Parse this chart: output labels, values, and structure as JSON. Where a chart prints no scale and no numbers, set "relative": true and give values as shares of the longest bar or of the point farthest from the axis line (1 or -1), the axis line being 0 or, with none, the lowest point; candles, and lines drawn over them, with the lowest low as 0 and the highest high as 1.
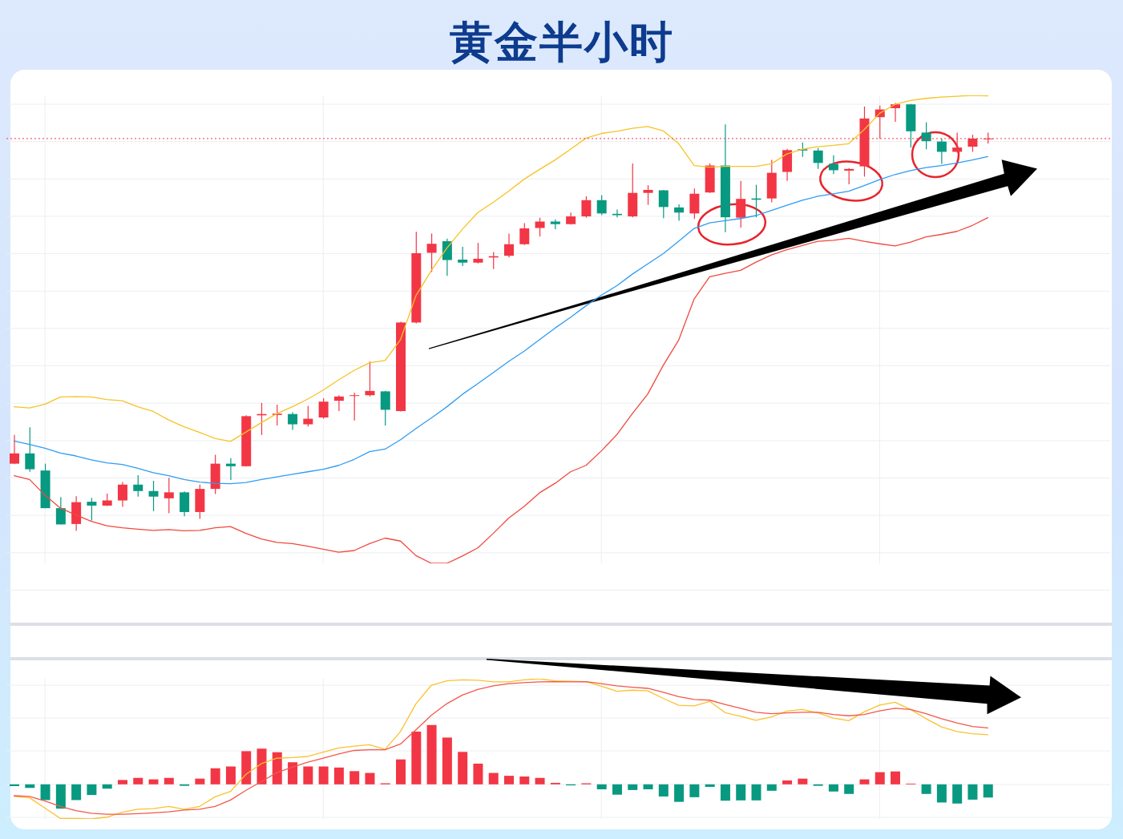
{
  "chart_data": [
    {
      "type": "candlestick",
      "title": "黄金半小时",
      "categories": [
        null,
        null,
        null,
        null,
        null,
        null,
        null,
        null,
        null,
        null,
        null,
        null,
        null,
        null,
        null,
        null,
        null,
        null,
        null,
        null,
        null,
        null,
        null,
        null,
        null,
        null,
        null,
        null,
        null,
        null,
        null,
        null,
        null,
        null,
        null,
        null,
        null,
        null,
        null,
        null,
        null,
        null,
        null,
        null,
        null,
        null,
        null,
        null,
        null,
        null,
        null,
        null,
        null,
        null,
        null,
        null,
        null,
        null,
        null,
        null,
        null,
        null,
        null,
        null
      ],
      "ohlc": [
        [
          0.157,
          0.224,
          0.156,
          0.181
        ],
        [
          0.181,
          0.242,
          0.138,
          0.144
        ],
        [
          0.141,
          0.157,
          0.053,
          0.053
        ],
        [
          0.053,
          0.079,
          0.015,
          0.015
        ],
        [
          0.016,
          0.081,
          0,
          0.067
        ],
        [
          0.068,
          0.077,
          0.024,
          0.059
        ],
        [
          0.059,
          0.087,
          0.058,
          0.071
        ],
        [
          0.071,
          0.114,
          0.056,
          0.108
        ],
        [
          0.108,
          0.13,
          0.08,
          0.093
        ],
        [
          0.093,
          0.117,
          0.046,
          0.08
        ],
        [
          0.076,
          0.124,
          0.041,
          0.09
        ],
        [
          0.09,
          0.092,
          0.034,
          0.044
        ],
        [
          0.044,
          0.108,
          0.028,
          0.098
        ],
        [
          0.098,
          0.178,
          0.086,
          0.157
        ],
        [
          0.157,
          0.17,
          0.119,
          0.151
        ],
        [
          0.151,
          0.27,
          0.15,
          0.268
        ],
        [
          0.27,
          0.299,
          0.224,
          0.273
        ],
        [
          0.271,
          0.295,
          0.246,
          0.274
        ],
        [
          0.273,
          0.277,
          0.236,
          0.249
        ],
        [
          0.249,
          0.292,
          0.244,
          0.262
        ],
        [
          0.265,
          0.31,
          0.262,
          0.302
        ],
        [
          0.304,
          0.317,
          0.28,
          0.314
        ],
        [
          0.316,
          0.323,
          0.258,
          0.317
        ],
        [
          0.317,
          0.396,
          0.314,
          0.327
        ],
        [
          0.326,
          0.327,
          0.246,
          0.283
        ],
        [
          0.28,
          0.489,
          0.279,
          0.487
        ],
        [
          0.487,
          0.699,
          0.485,
          0.649
        ],
        [
          0.65,
          0.695,
          0.605,
          0.671
        ],
        [
          0.677,
          0.683,
          0.596,
          0.633
        ],
        [
          0.634,
          0.664,
          0.619,
          0.627
        ],
        [
          0.627,
          0.673,
          0.625,
          0.636
        ],
        [
          0.639,
          0.652,
          0.612,
          0.642
        ],
        [
          0.643,
          0.695,
          0.639,
          0.67
        ],
        [
          0.67,
          0.719,
          0.668,
          0.707
        ],
        [
          0.708,
          0.732,
          0.688,
          0.723
        ],
        [
          0.723,
          0.728,
          0.705,
          0.717
        ],
        [
          0.717,
          0.744,
          0.716,
          0.735
        ],
        [
          0.735,
          0.782,
          0.732,
          0.773
        ],
        [
          0.773,
          0.785,
          0.738,
          0.742
        ],
        [
          0.741,
          0.751,
          0.733,
          0.738
        ],
        [
          0.735,
          0.859,
          0.733,
          0.79
        ],
        [
          0.79,
          0.808,
          0.762,
          0.797
        ],
        [
          0.796,
          0.797,
          0.731,
          0.757
        ],
        [
          0.756,
          0.763,
          0.725,
          0.744
        ],
        [
          0.742,
          0.8,
          0.729,
          0.788
        ],
        [
          0.791,
          0.859,
          0.79,
          0.854
        ],
        [
          0.854,
          0.95,
          0.698,
          0.733
        ],
        [
          0.732,
          0.818,
          0.709,
          0.776
        ],
        [
          0.777,
          0.809,
          0.733,
          0.774
        ],
        [
          0.777,
          0.867,
          0.768,
          0.837
        ],
        [
          0.839,
          0.893,
          0.818,
          0.89
        ],
        [
          0.892,
          0.908,
          0.874,
          0.889
        ],
        [
          0.889,
          0.895,
          0.846,
          0.86
        ],
        [
          0.858,
          0.878,
          0.834,
          0.843
        ],
        [
          0.842,
          0.848,
          0.81,
          0.846
        ],
        [
          0.852,
          0.992,
          0.828,
          0.964
        ],
        [
          0.967,
          0.994,
          0.917,
          0.985
        ],
        [
          0.988,
          1.0,
          0.956,
          0.997
        ],
        [
          0.997,
          0.998,
          0.896,
          0.934
        ],
        [
          0.931,
          0.955,
          0.892,
          0.911
        ],
        [
          0.91,
          0.917,
          0.858,
          0.886
        ],
        [
          0.886,
          0.931,
          0.884,
          0.896
        ],
        [
          0.898,
          0.926,
          0.886,
          0.917
        ],
        [
          0.916,
          0.931,
          0.905,
          0.917
        ]
      ],
      "colors": [
        "#f23645",
        "#089981",
        "#089981",
        "#089981",
        "#f23645",
        "#089981",
        "#f23645",
        "#f23645",
        "#089981",
        "#089981",
        "#f23645",
        "#089981",
        "#f23645",
        "#f23645",
        "#089981",
        "#f23645",
        "#f23645",
        "#f23645",
        "#089981",
        "#f23645",
        "#f23645",
        "#f23645",
        "#f23645",
        "#f23645",
        "#089981",
        "#f23645",
        "#f23645",
        "#f23645",
        "#089981",
        "#089981",
        "#f23645",
        "#f23645",
        "#f23645",
        "#f23645",
        "#f23645",
        "#089981",
        "#f23645",
        "#f23645",
        "#089981",
        "#089981",
        "#f23645",
        "#f23645",
        "#089981",
        "#089981",
        "#f23645",
        "#f23645",
        "#089981",
        "#f23645",
        "#089981",
        "#f23645",
        "#f23645",
        "#089981",
        "#089981",
        "#089981",
        "#f23645",
        "#f23645",
        "#f23645",
        "#f23645",
        "#089981",
        "#089981",
        "#089981",
        "#f23645",
        "#f23645",
        "#f23645"
      ],
      "relative": true,
      "grid": true,
      "ref_lines": [
        {
          "axis": "y",
          "value": 0.917,
          "color": "#f23645",
          "line_style": "dotted"
        }
      ],
      "series": [
        {
          "type": "line",
          "color": "#f7c325",
          "values": [
            0.29,
            0.287,
            0.296,
            0.313,
            0.314,
            0.313,
            0.307,
            0.304,
            0.29,
            0.279,
            0.259,
            0.243,
            0.23,
            0.216,
            0.209,
            0.231,
            0.253,
            0.274,
            0.29,
            0.308,
            0.329,
            0.353,
            0.375,
            0.393,
            0.398,
            0.447,
            0.55,
            0.609,
            0.661,
            0.705,
            0.744,
            0.768,
            0.794,
            0.822,
            0.845,
            0.867,
            0.892,
            0.918,
            0.929,
            0.934,
            0.941,
            0.945,
            0.935,
            0.905,
            0.854,
            0.85,
            0.852,
            0.852,
            0.852,
            0.858,
            0.881,
            0.892,
            0.898,
            0.901,
            0.905,
            0.938,
            0.976,
            0.997,
            1.006,
            1.011,
            1.014,
            1.016,
            1.018,
            1.017
          ]
        },
        {
          "type": "line",
          "color": "#2f9cf3",
          "values": [
            0.21,
            0.202,
            0.193,
            0.182,
            0.175,
            0.166,
            0.159,
            0.155,
            0.146,
            0.136,
            0.129,
            0.12,
            0.114,
            0.111,
            0.11,
            0.113,
            0.12,
            0.126,
            0.132,
            0.138,
            0.144,
            0.153,
            0.167,
            0.185,
            0.191,
            0.213,
            0.239,
            0.264,
            0.29,
            0.319,
            0.344,
            0.37,
            0.396,
            0.42,
            0.447,
            0.474,
            0.499,
            0.526,
            0.551,
            0.573,
            0.6,
            0.624,
            0.648,
            0.677,
            0.707,
            0.72,
            0.725,
            0.73,
            0.737,
            0.749,
            0.761,
            0.773,
            0.782,
            0.788,
            0.794,
            0.807,
            0.821,
            0.833,
            0.842,
            0.849,
            0.854,
            0.86,
            0.867,
            0.875
          ]
        },
        {
          "type": "line",
          "color": "#f0493e",
          "values": [
            0.129,
            0.12,
            0.083,
            0.053,
            0.037,
            0.022,
            0.012,
            0.007,
            0.004,
            0.001,
            0.003,
            0,
            0.001,
            0.007,
            0.01,
            -0.006,
            -0.019,
            -0.027,
            -0.03,
            -0.036,
            -0.043,
            -0.05,
            -0.046,
            -0.03,
            -0.017,
            -0.024,
            -0.058,
            -0.076,
            -0.076,
            -0.059,
            -0.04,
            -0.006,
            0.03,
            0.057,
            0.089,
            0.111,
            0.138,
            0.153,
            0.187,
            0.225,
            0.274,
            0.32,
            0.387,
            0.446,
            0.542,
            0.594,
            0.602,
            0.609,
            0.628,
            0.645,
            0.657,
            0.667,
            0.677,
            0.679,
            0.684,
            0.677,
            0.671,
            0.666,
            0.675,
            0.687,
            0.693,
            0.7,
            0.714,
            0.732
          ]
        }
      ]
    },
    {
      "type": "bar",
      "categories": [
        null,
        null,
        null,
        null,
        null,
        null,
        null,
        null,
        null,
        null,
        null,
        null,
        null,
        null,
        null,
        null,
        null,
        null,
        null,
        null,
        null,
        null,
        null,
        null,
        null,
        null,
        null,
        null,
        null,
        null,
        null,
        null,
        null,
        null,
        null,
        null,
        null,
        null,
        null,
        null,
        null,
        null,
        null,
        null,
        null,
        null,
        null,
        null,
        null,
        null,
        null,
        null,
        null,
        null,
        null,
        null,
        null,
        null,
        null,
        null,
        null,
        null,
        null,
        null
      ],
      "relative": true,
      "grid": true,
      "series": [
        {
          "values": [
            -0.017,
            -0.034,
            -0.149,
            -0.23,
            -0.149,
            -0.101,
            -0.041,
            0.041,
            0.061,
            0.047,
            0.061,
            -0.014,
            0.054,
            0.152,
            0.169,
            0.314,
            0.338,
            0.304,
            0.209,
            0.169,
            0.169,
            0.159,
            0.125,
            0.108,
            0.01,
            0.236,
            0.5,
            0.561,
            0.443,
            0.307,
            0.196,
            0.108,
            0.081,
            0.074,
            0.061,
            0.014,
            -0.01,
            0.01,
            -0.047,
            -0.098,
            -0.054,
            -0.047,
            -0.115,
            -0.166,
            -0.122,
            -0.024,
            -0.155,
            -0.152,
            -0.152,
            -0.061,
            0.037,
            0.054,
            -0.014,
            -0.068,
            -0.091,
            0.047,
            0.115,
            0.122,
            0.007,
            -0.091,
            -0.172,
            -0.182,
            -0.145,
            -0.125
          ],
          "colors": [
            "#089981",
            "#089981",
            "#089981",
            "#089981",
            "#089981",
            "#089981",
            "#089981",
            "#f23645",
            "#f23645",
            "#f23645",
            "#f23645",
            "#089981",
            "#f23645",
            "#f23645",
            "#f23645",
            "#f23645",
            "#f23645",
            "#f23645",
            "#f23645",
            "#f23645",
            "#f23645",
            "#f23645",
            "#f23645",
            "#f23645",
            "#f23645",
            "#f23645",
            "#f23645",
            "#f23645",
            "#f23645",
            "#f23645",
            "#f23645",
            "#f23645",
            "#f23645",
            "#f23645",
            "#f23645",
            "#f23645",
            "#089981",
            "#f23645",
            "#089981",
            "#089981",
            "#089981",
            "#089981",
            "#089981",
            "#089981",
            "#089981",
            "#089981",
            "#089981",
            "#089981",
            "#089981",
            "#089981",
            "#f23645",
            "#f23645",
            "#089981",
            "#089981",
            "#089981",
            "#f23645",
            "#f23645",
            "#f23645",
            "#f23645",
            "#089981",
            "#089981",
            "#089981",
            "#089981",
            "#089981"
          ]
        },
        {
          "type": "line",
          "color": "#f9c22e",
          "values": [
            -0.115,
            -0.128,
            -0.226,
            -0.324,
            -0.324,
            -0.328,
            -0.311,
            -0.264,
            -0.236,
            -0.23,
            -0.209,
            -0.236,
            -0.209,
            -0.118,
            -0.068,
            0.095,
            0.196,
            0.247,
            0.253,
            0.264,
            0.304,
            0.345,
            0.361,
            0.375,
            0.331,
            0.5,
            0.764,
            0.939,
            0.98,
            0.99,
            0.986,
            0.97,
            0.97,
            0.99,
            1.0,
            0.98,
            0.976,
            0.973,
            0.929,
            0.882,
            0.892,
            0.885,
            0.814,
            0.748,
            0.743,
            0.785,
            0.679,
            0.644,
            0.606,
            0.639,
            0.694,
            0.709,
            0.676,
            0.628,
            0.603,
            0.686,
            0.75,
            0.777,
            0.709,
            0.622,
            0.544,
            0.5,
            0.48,
            0.47
          ]
        },
        {
          "type": "line",
          "color": "#f2594b",
          "values": [
            -0.108,
            -0.115,
            -0.159,
            -0.209,
            -0.25,
            -0.274,
            -0.284,
            -0.284,
            -0.277,
            -0.27,
            -0.26,
            -0.243,
            -0.236,
            -0.209,
            -0.149,
            -0.057,
            0.027,
            0.111,
            0.162,
            0.209,
            0.247,
            0.287,
            0.321,
            0.328,
            0.328,
            0.382,
            0.517,
            0.655,
            0.764,
            0.845,
            0.899,
            0.932,
            0.953,
            0.963,
            0.97,
            0.973,
            0.97,
            0.973,
            0.953,
            0.932,
            0.919,
            0.909,
            0.872,
            0.831,
            0.804,
            0.797,
            0.757,
            0.72,
            0.682,
            0.669,
            0.676,
            0.682,
            0.682,
            0.662,
            0.649,
            0.662,
            0.696,
            0.72,
            0.709,
            0.669,
            0.622,
            0.581,
            0.547,
            0.534
          ]
        }
      ]
    }
  ]
}
